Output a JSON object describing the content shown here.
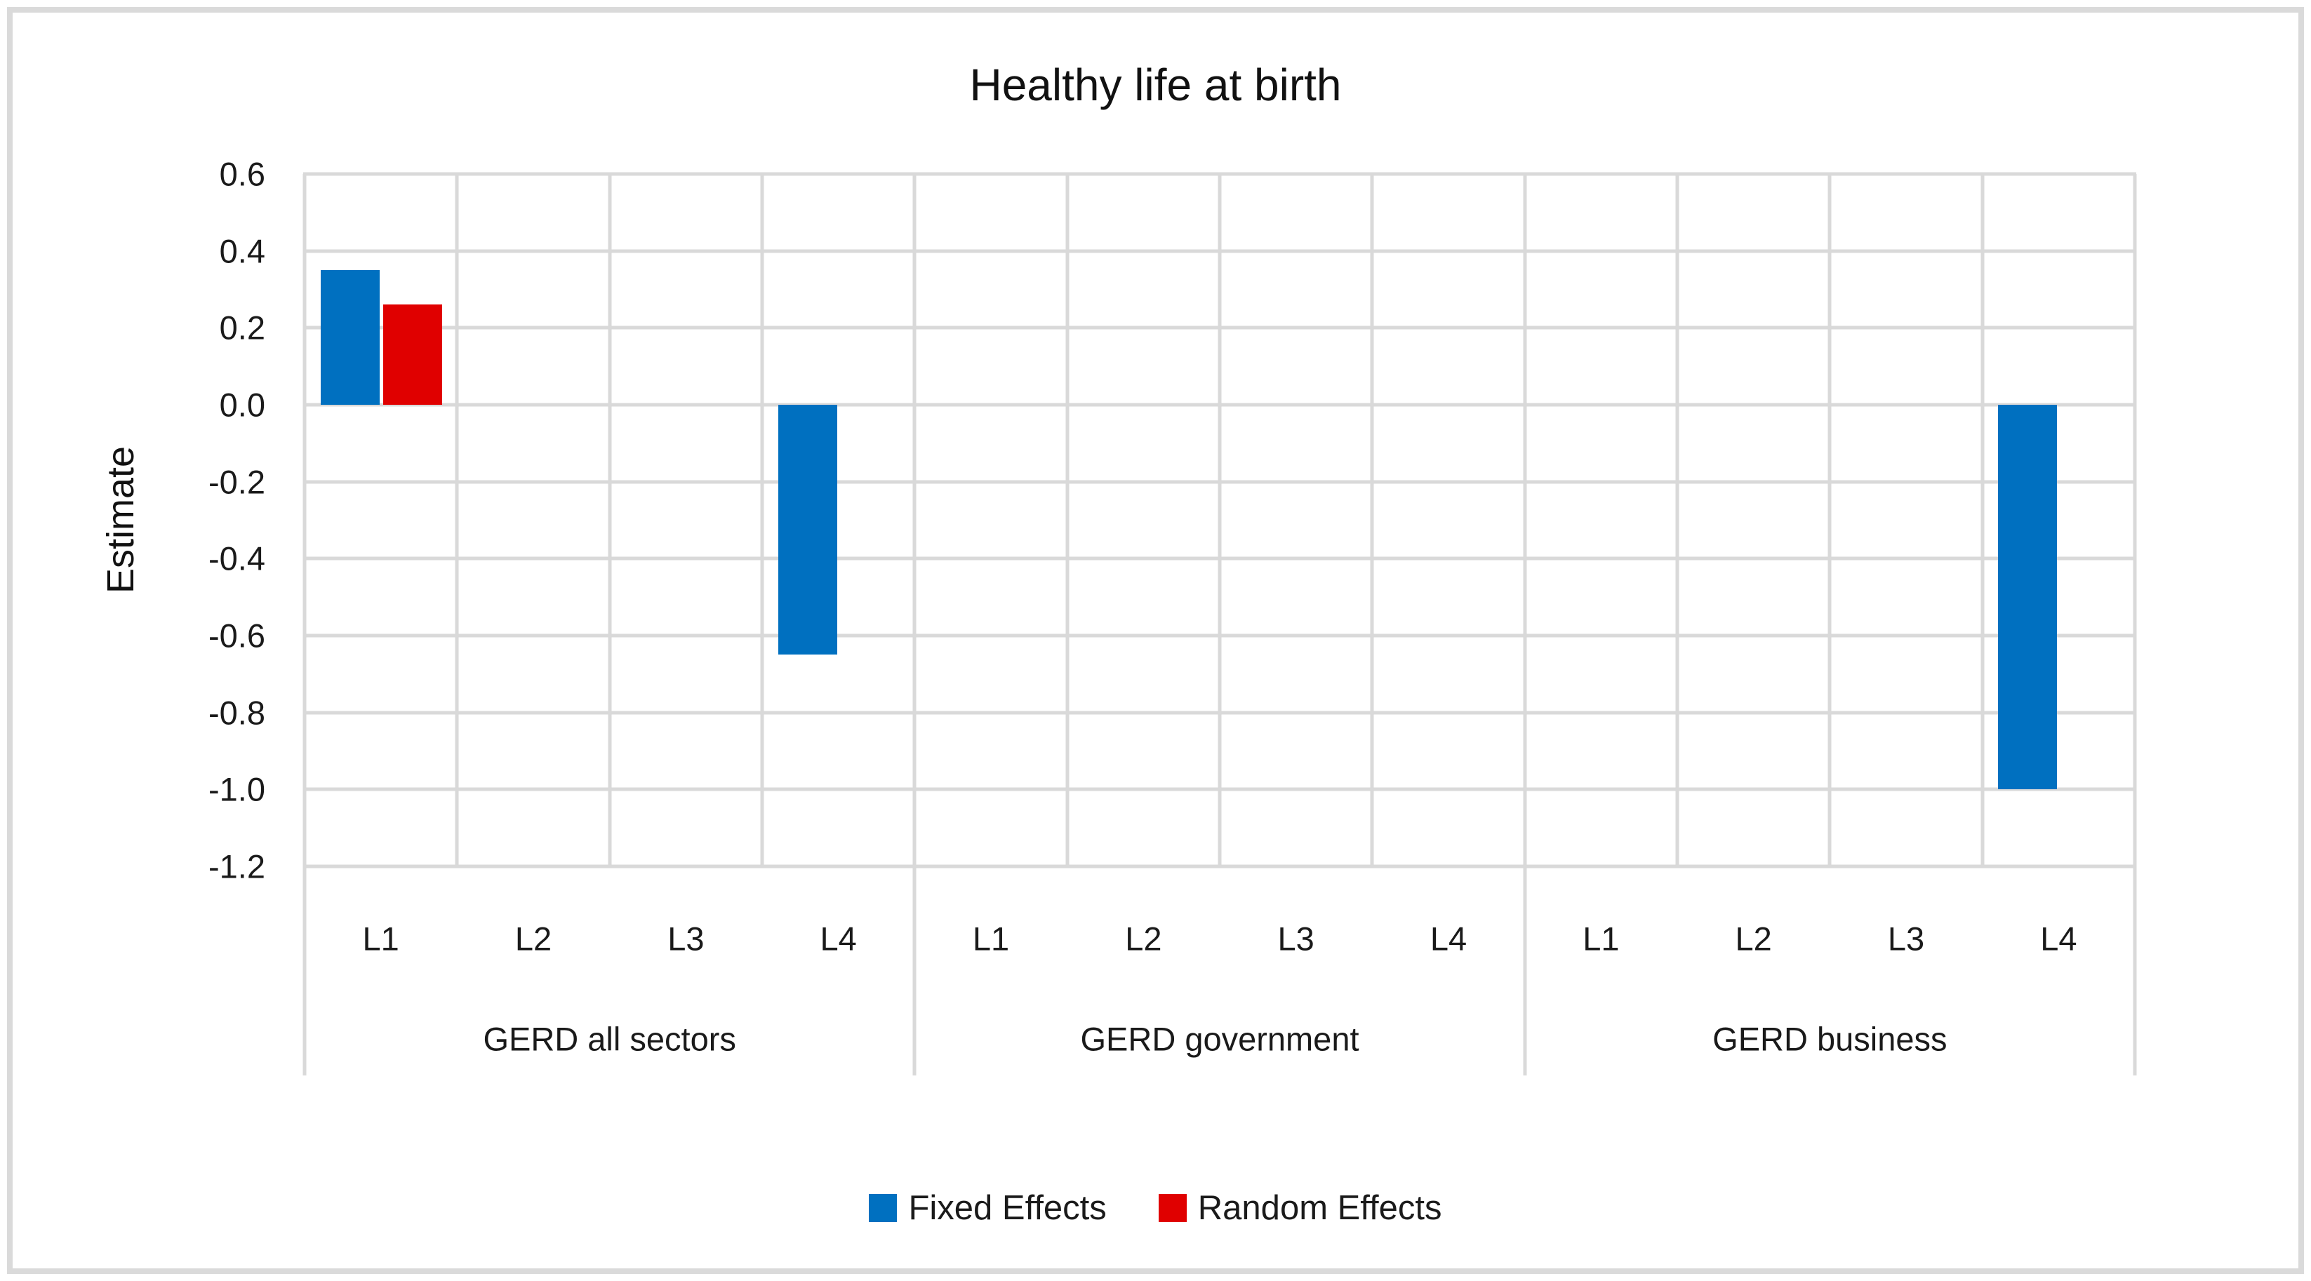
{
  "chart_data": {
    "type": "bar",
    "title": "Healthy life at birth",
    "ylabel": "Estimate",
    "xlabel": "",
    "ylim": [
      -1.2,
      0.6
    ],
    "ytick_step": 0.2,
    "ytick_labels": [
      "0.6",
      "0.4",
      "0.2",
      "0.0",
      "-0.2",
      "-0.4",
      "-0.6",
      "-0.8",
      "-1.0",
      "-1.2"
    ],
    "grid": true,
    "legend_position": "bottom",
    "groups": [
      {
        "label": "GERD all sectors",
        "categories": [
          "L1",
          "L2",
          "L3",
          "L4"
        ]
      },
      {
        "label": "GERD government",
        "categories": [
          "L1",
          "L2",
          "L3",
          "L4"
        ]
      },
      {
        "label": "GERD business",
        "categories": [
          "L1",
          "L2",
          "L3",
          "L4"
        ]
      }
    ],
    "series": [
      {
        "name": "Fixed Effects",
        "color": "#0070C0",
        "values": [
          [
            0.35,
            null,
            null,
            -0.65
          ],
          [
            null,
            null,
            null,
            null
          ],
          [
            null,
            null,
            null,
            -1.0
          ]
        ]
      },
      {
        "name": "Random Effects",
        "color": "#E00000",
        "values": [
          [
            0.26,
            null,
            null,
            null
          ],
          [
            null,
            null,
            null,
            null
          ],
          [
            null,
            null,
            null,
            null
          ]
        ]
      }
    ]
  },
  "colors": {
    "gridline": "#D9D9D9",
    "frame_border": "#DADADA",
    "text": "#111111"
  }
}
